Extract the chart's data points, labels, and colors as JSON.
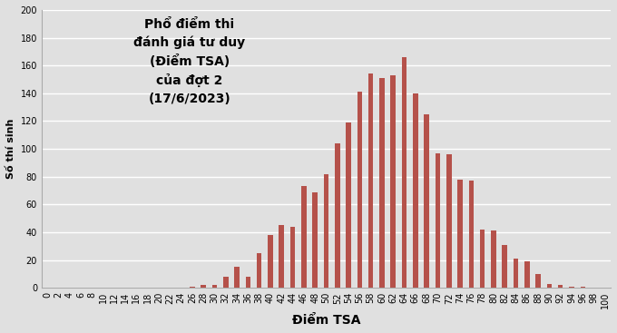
{
  "title": "Phổ điểm thi\nđánh giá tư duy\n(Điểm TSA)\ncủa đợt 2\n(17/6/2023)",
  "xlabel": "Điểm TSA",
  "ylabel": "Số thí sinh",
  "bar_color": "#b5514a",
  "background_color": "#e0e0e0",
  "ylim": [
    0,
    200
  ],
  "yticks": [
    0,
    20,
    40,
    60,
    80,
    100,
    120,
    140,
    160,
    180,
    200
  ],
  "scores": [
    0,
    1,
    2,
    3,
    4,
    5,
    6,
    7,
    8,
    9,
    10,
    11,
    12,
    13,
    14,
    15,
    16,
    17,
    18,
    19,
    20,
    21,
    22,
    23,
    24,
    25,
    26,
    27,
    28,
    29,
    30,
    31,
    32,
    33,
    34,
    35,
    36,
    37,
    38,
    39,
    40,
    41,
    42,
    43,
    44,
    45,
    46,
    47,
    48,
    49,
    50,
    51,
    52,
    53,
    54,
    55,
    56,
    57,
    58,
    59,
    60,
    61,
    62,
    63,
    64,
    65,
    66,
    67,
    68,
    69,
    70,
    71,
    72,
    73,
    74,
    75,
    76,
    77,
    78,
    79,
    80,
    81,
    82,
    83,
    84,
    85,
    86,
    87,
    88,
    89,
    90,
    91,
    92,
    93,
    94,
    95,
    96,
    97,
    98,
    99,
    100
  ],
  "values": [
    0,
    0,
    0,
    0,
    0,
    0,
    0,
    0,
    0,
    0,
    0,
    0,
    0,
    0,
    0,
    0,
    0,
    0,
    0,
    0,
    0,
    0,
    0,
    0,
    0,
    0,
    1,
    0,
    2,
    0,
    2,
    0,
    8,
    0,
    15,
    0,
    8,
    0,
    25,
    0,
    38,
    0,
    45,
    0,
    44,
    0,
    73,
    0,
    69,
    0,
    82,
    0,
    104,
    0,
    119,
    0,
    141,
    0,
    154,
    0,
    151,
    0,
    153,
    0,
    166,
    0,
    140,
    0,
    125,
    0,
    97,
    0,
    96,
    0,
    78,
    0,
    77,
    0,
    42,
    0,
    41,
    0,
    31,
    0,
    21,
    0,
    19,
    0,
    10,
    0,
    3,
    0,
    2,
    0,
    1,
    0,
    1,
    0,
    0,
    0,
    0
  ]
}
